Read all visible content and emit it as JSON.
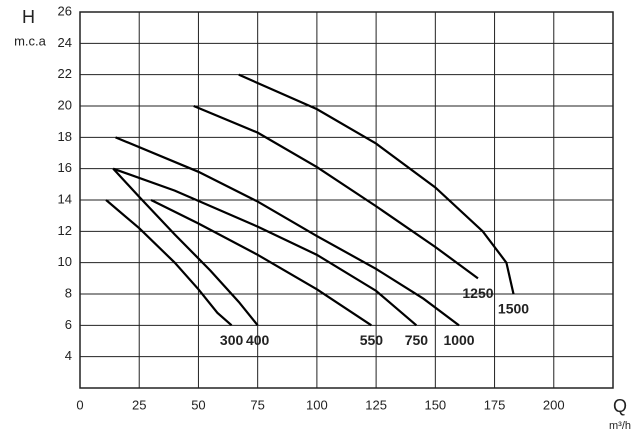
{
  "chart_data": {
    "type": "line",
    "y_label": "H",
    "y_unit": "m.c.a",
    "x_label": "Q",
    "x_unit": "m³/h",
    "xlim": [
      0,
      225
    ],
    "xticks": [
      0,
      25,
      50,
      75,
      100,
      125,
      150,
      175,
      200
    ],
    "ylim": [
      2,
      26
    ],
    "yticks": [
      4,
      6,
      8,
      10,
      12,
      14,
      16,
      18,
      20,
      22,
      24,
      26
    ],
    "grid": true,
    "series": [
      {
        "name": "300",
        "color": "#000000",
        "x": [
          11,
          25,
          40,
          50,
          58,
          64
        ],
        "values": [
          14,
          12.2,
          10,
          8.3,
          6.8,
          6
        ]
      },
      {
        "name": "400",
        "color": "#000000",
        "x": [
          14,
          25,
          40,
          55,
          67,
          75
        ],
        "values": [
          16,
          14.2,
          11.8,
          9.5,
          7.5,
          6
        ]
      },
      {
        "name": "550",
        "color": "#000000",
        "x": [
          30,
          50,
          75,
          100,
          123
        ],
        "values": [
          14,
          12.5,
          10.5,
          8.3,
          6
        ]
      },
      {
        "name": "750",
        "color": "#000000",
        "x": [
          14,
          40,
          75,
          100,
          125,
          142
        ],
        "values": [
          16,
          14.6,
          12.3,
          10.5,
          8.2,
          6
        ]
      },
      {
        "name": "1000",
        "color": "#000000",
        "x": [
          15,
          50,
          75,
          100,
          125,
          145,
          160
        ],
        "values": [
          18,
          15.8,
          13.9,
          11.7,
          9.6,
          7.7,
          6
        ]
      },
      {
        "name": "1250",
        "color": "#000000",
        "x": [
          48,
          75,
          100,
          125,
          150,
          168
        ],
        "values": [
          20,
          18.3,
          16.1,
          13.6,
          11,
          9
        ]
      },
      {
        "name": "1500",
        "color": "#000000",
        "x": [
          67,
          100,
          125,
          150,
          170,
          180,
          183
        ],
        "values": [
          22,
          19.8,
          17.6,
          14.8,
          12,
          10,
          8
        ]
      }
    ]
  }
}
